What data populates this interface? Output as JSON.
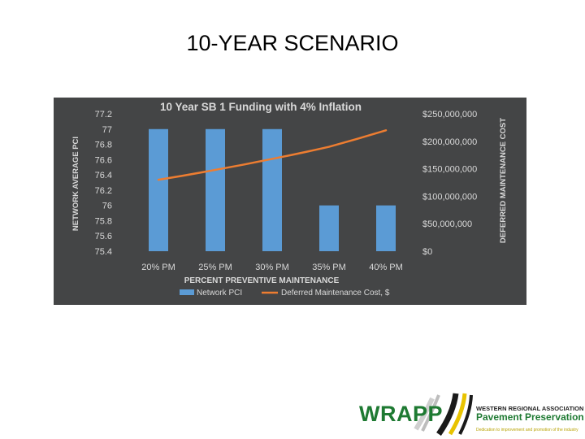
{
  "slide": {
    "title": "10-YEAR SCENARIO"
  },
  "colors": {
    "bar": "#5b9bd5",
    "line": "#ed7d31",
    "panel": "#444546",
    "text": "#d9d9d9"
  },
  "chart_data": {
    "type": "bar",
    "title": "10 Year SB 1 Funding with 4% Inflation",
    "xlabel": "PERCENT PREVENTIVE MAINTENANCE",
    "ylabel": "NETWORK AVERAGE PCI",
    "y2label": "DEFERRED MAINTENANCE COST",
    "categories": [
      "20% PM",
      "25% PM",
      "30% PM",
      "35% PM",
      "40% PM"
    ],
    "ylim": [
      75.4,
      77.2
    ],
    "yticks": [
      "77.2",
      "77",
      "76.8",
      "76.6",
      "76.4",
      "76.2",
      "76",
      "75.8",
      "75.6",
      "75.4"
    ],
    "y2lim": [
      0,
      250000000
    ],
    "y2ticks": [
      "$250,000,000",
      "$200,000,000",
      "$150,000,000",
      "$100,000,000",
      "$50,000,000",
      "$0"
    ],
    "series": [
      {
        "name": "Network PCI",
        "type": "bar",
        "axis": "left",
        "values": [
          77,
          77,
          77,
          76,
          76
        ]
      },
      {
        "name": "Deferred Maintenance Cost, $",
        "type": "line",
        "axis": "right",
        "values": [
          130000000,
          148000000,
          168000000,
          190000000,
          220000000
        ]
      }
    ],
    "grid": false,
    "legend": "bottom"
  },
  "logo": {
    "name": "WRAPP",
    "line1": "WESTERN REGIONAL ASSOCIATION for",
    "line2": "Pavement Preservation",
    "line3": "Dedication to improvement and promotion of the industry"
  }
}
